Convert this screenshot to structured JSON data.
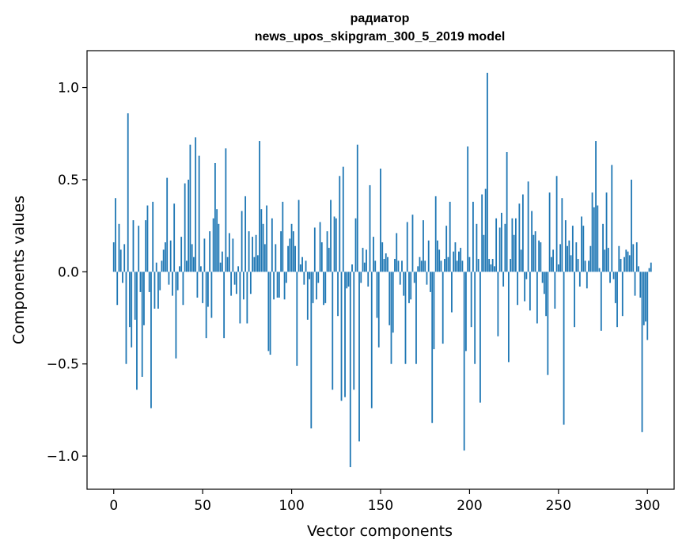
{
  "chart_data": {
    "type": "bar",
    "title_line1": "радиатор",
    "title_line2": "news_upos_skipgram_300_5_2019 model",
    "xlabel": "Vector components",
    "ylabel": "Components values",
    "xlim": [
      -15,
      315
    ],
    "ylim": [
      -1.18,
      1.2
    ],
    "xticks": [
      0,
      50,
      100,
      150,
      200,
      250,
      300
    ],
    "xtick_labels": [
      "0",
      "50",
      "100",
      "150",
      "200",
      "250",
      "300"
    ],
    "yticks": [
      -1.0,
      -0.5,
      0.0,
      0.5,
      1.0
    ],
    "ytick_labels": [
      "−1.0",
      "−0.5",
      "0.0",
      "0.5",
      "1.0"
    ],
    "bar_color": "#1f77b4",
    "grid": false,
    "values": [
      0.16,
      0.4,
      -0.18,
      0.26,
      0.12,
      -0.06,
      0.15,
      -0.5,
      0.86,
      -0.3,
      -0.41,
      0.28,
      -0.26,
      -0.64,
      0.25,
      -0.11,
      -0.57,
      -0.29,
      0.28,
      0.36,
      -0.11,
      -0.74,
      0.38,
      -0.2,
      0.05,
      -0.2,
      -0.1,
      0.06,
      0.12,
      0.16,
      0.51,
      -0.07,
      0.17,
      -0.13,
      0.37,
      -0.47,
      -0.1,
      0.03,
      0.19,
      -0.18,
      0.48,
      0.06,
      0.5,
      0.69,
      0.15,
      0.08,
      0.73,
      -0.14,
      0.63,
      0.03,
      -0.17,
      0.18,
      -0.36,
      -0.19,
      0.22,
      -0.25,
      0.29,
      0.59,
      0.34,
      0.26,
      0.05,
      0.11,
      -0.36,
      0.67,
      0.08,
      0.21,
      -0.13,
      0.18,
      -0.07,
      -0.12,
      0.03,
      -0.28,
      0.33,
      -0.15,
      0.41,
      -0.28,
      0.22,
      -0.12,
      0.19,
      0.08,
      0.2,
      0.09,
      0.71,
      0.34,
      0.26,
      0.15,
      0.36,
      -0.43,
      -0.45,
      0.29,
      -0.15,
      0.15,
      -0.14,
      -0.14,
      0.22,
      0.38,
      -0.15,
      -0.06,
      0.14,
      0.18,
      0.26,
      0.22,
      0.14,
      -0.51,
      0.39,
      0.04,
      0.08,
      -0.07,
      0.06,
      -0.26,
      -0.04,
      -0.85,
      -0.17,
      0.24,
      -0.15,
      -0.06,
      0.27,
      0.16,
      -0.18,
      -0.17,
      0.22,
      0.13,
      0.39,
      -0.64,
      0.3,
      0.29,
      -0.24,
      0.52,
      -0.7,
      0.57,
      -0.68,
      -0.09,
      -0.08,
      -1.06,
      0.04,
      -0.64,
      0.29,
      0.69,
      -0.92,
      -0.06,
      0.13,
      0.05,
      0.12,
      -0.08,
      0.47,
      -0.74,
      0.19,
      0.06,
      -0.25,
      -0.41,
      0.56,
      0.16,
      0.07,
      0.1,
      0.08,
      -0.29,
      -0.5,
      -0.33,
      0.07,
      0.21,
      0.06,
      -0.07,
      0.06,
      -0.13,
      -0.5,
      0.27,
      -0.17,
      -0.15,
      0.31,
      -0.06,
      -0.5,
      0.03,
      0.08,
      0.06,
      0.28,
      0.06,
      -0.07,
      0.17,
      -0.11,
      -0.82,
      -0.42,
      0.41,
      0.17,
      0.12,
      0.06,
      -0.39,
      0.07,
      0.25,
      0.08,
      0.38,
      -0.22,
      0.11,
      0.16,
      0.06,
      0.11,
      0.13,
      0.06,
      -0.97,
      -0.43,
      0.68,
      0.08,
      -0.3,
      0.38,
      -0.5,
      0.26,
      0.07,
      -0.71,
      0.42,
      0.2,
      0.45,
      1.08,
      0.07,
      0.04,
      0.07,
      0.03,
      0.29,
      -0.35,
      0.24,
      0.32,
      -0.08,
      0.26,
      0.65,
      -0.49,
      0.07,
      0.29,
      0.2,
      0.29,
      -0.18,
      0.37,
      0.12,
      0.42,
      -0.16,
      -0.04,
      0.49,
      -0.21,
      0.33,
      0.2,
      0.22,
      -0.28,
      0.17,
      0.16,
      -0.06,
      -0.12,
      -0.24,
      -0.56,
      0.43,
      0.08,
      0.12,
      -0.2,
      0.52,
      0.04,
      0.15,
      0.4,
      -0.83,
      0.28,
      0.14,
      0.17,
      0.09,
      0.25,
      -0.3,
      0.16,
      0.07,
      -0.08,
      0.3,
      0.25,
      0.06,
      -0.09,
      0.06,
      0.14,
      0.43,
      0.35,
      0.71,
      0.36,
      0.02,
      -0.32,
      0.26,
      0.12,
      0.43,
      0.13,
      -0.06,
      0.58,
      -0.04,
      -0.17,
      -0.3,
      0.14,
      0.07,
      -0.24,
      0.08,
      0.12,
      0.11,
      0.09,
      0.5,
      0.15,
      -0.13,
      0.16,
      0.03,
      -0.14,
      -0.87,
      -0.29,
      -0.27,
      -0.37,
      0.02,
      0.05
    ]
  }
}
